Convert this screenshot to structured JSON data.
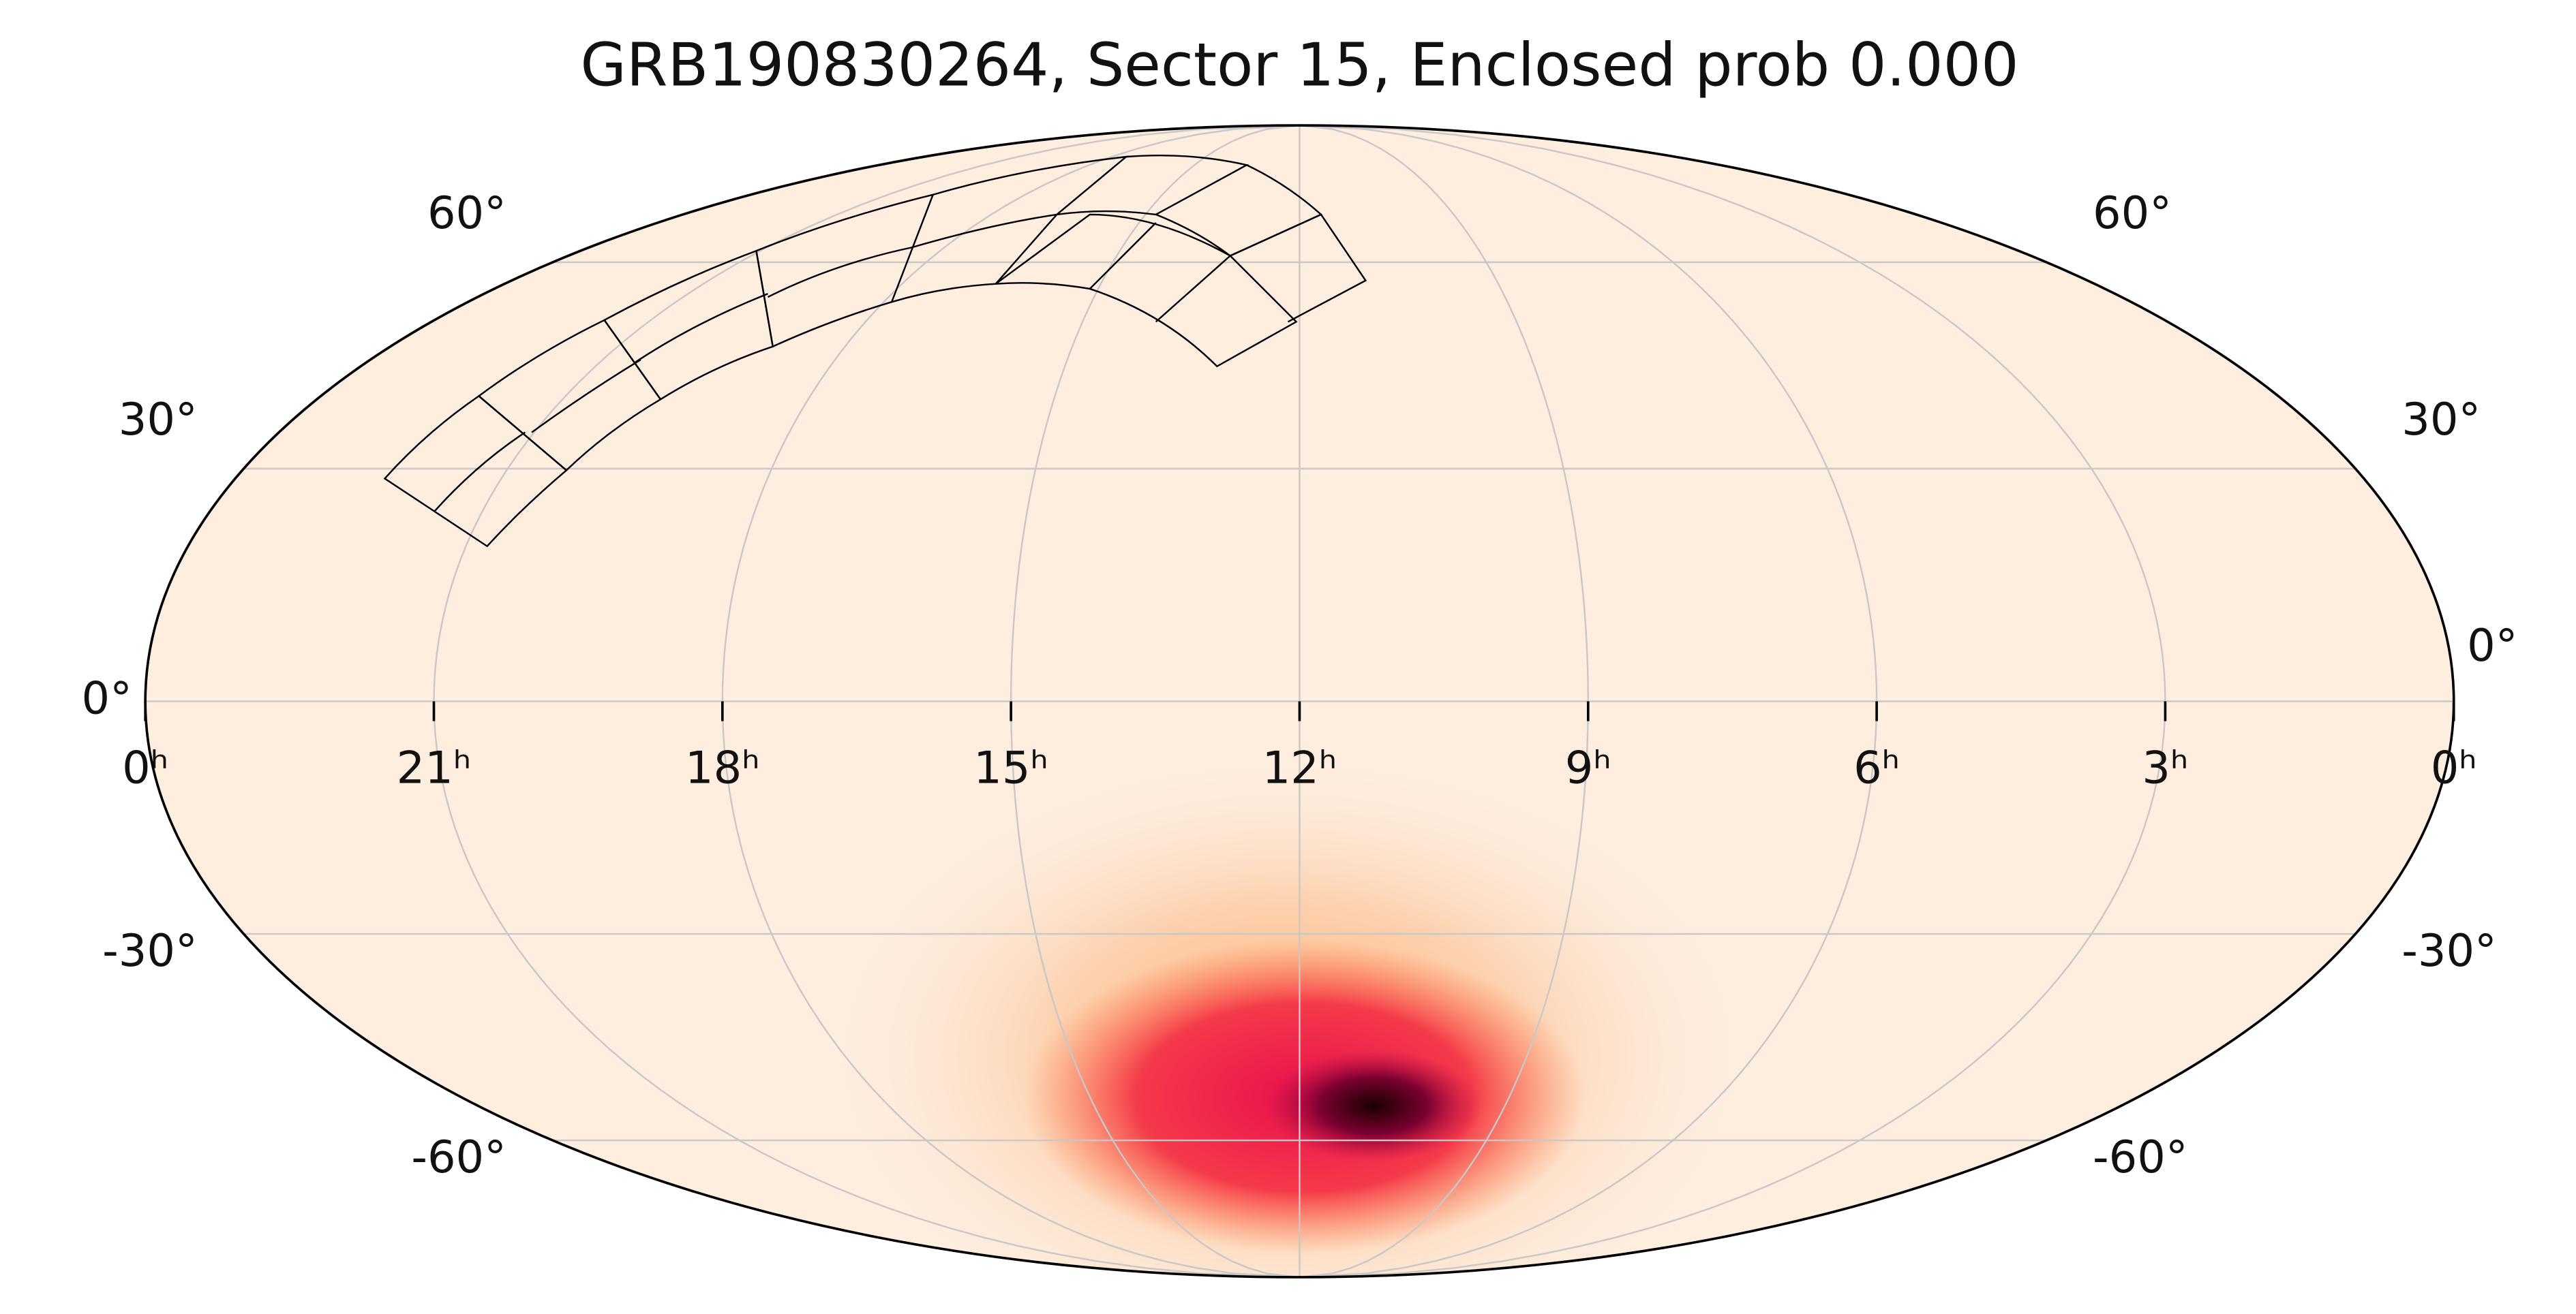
{
  "chart_data": {
    "type": "mollweide",
    "title": "GRB190830264, Sector 15, Enclosed prob 0.000",
    "xlim": [
      24,
      0
    ],
    "xticks": [
      {
        "value": 24,
        "label": "0ʰ"
      },
      {
        "value": 21,
        "label": "21ʰ"
      },
      {
        "value": 18,
        "label": "18ʰ"
      },
      {
        "value": 15,
        "label": "15ʰ"
      },
      {
        "value": 12,
        "label": "12ʰ"
      },
      {
        "value": 9,
        "label": "9ʰ"
      },
      {
        "value": 6,
        "label": "6ʰ"
      },
      {
        "value": 3,
        "label": "3ʰ"
      },
      {
        "value": 0,
        "label": "0ʰ"
      }
    ],
    "ylim": [
      -90,
      90
    ],
    "yticks": [
      {
        "value": -60,
        "label": "-60°"
      },
      {
        "value": -30,
        "label": "-30°"
      },
      {
        "value": 0,
        "label": "0°"
      },
      {
        "value": 30,
        "label": "30°"
      },
      {
        "value": 60,
        "label": "60°"
      }
    ],
    "grid": true,
    "color": "#fdeee0"
  }
}
